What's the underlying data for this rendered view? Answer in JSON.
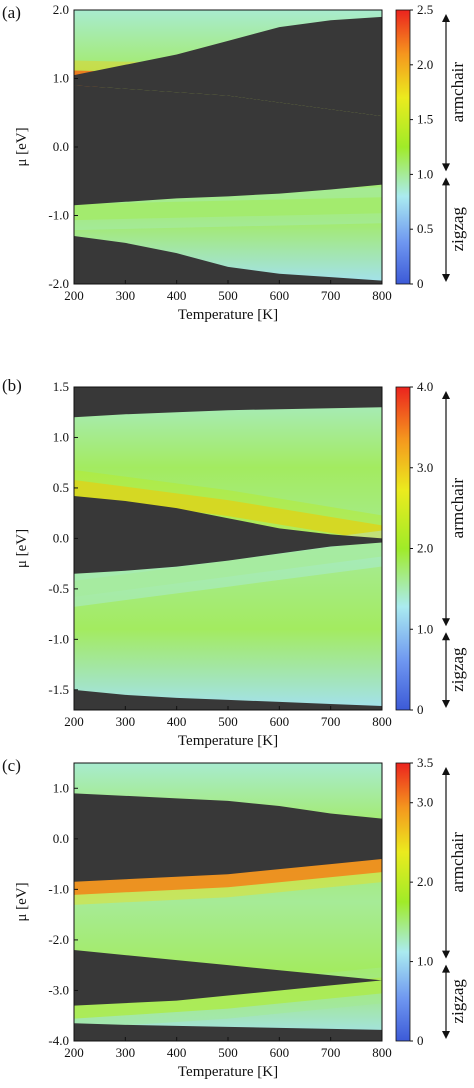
{
  "chart_data": [
    {
      "type": "heatmap",
      "panel_label": "(a)",
      "xlabel": "Temperature [K]",
      "ylabel": "μ [eV]",
      "xlim": [
        200,
        800
      ],
      "ylim": [
        -2.0,
        2.0
      ],
      "xticks": [
        "200",
        "300",
        "400",
        "500",
        "600",
        "700",
        "800"
      ],
      "yticks": [
        "2.0",
        "1.0",
        "0.0",
        "-1.0",
        "-2.0"
      ],
      "ytick_values": [
        2.0,
        1.0,
        0.0,
        -1.0,
        -2.0
      ],
      "colorbar": {
        "range": [
          0,
          2.5
        ],
        "ticks": [
          "2.5",
          "2.0",
          "1.5",
          "1.0",
          "0.5",
          "0"
        ],
        "tick_values": [
          2.5,
          2.0,
          1.5,
          1.0,
          0.5,
          0
        ],
        "split_value": 1.0,
        "upper_label": "armchair",
        "lower_label": "zigzag"
      },
      "gap_regions": [
        {
          "t": [
            200,
            300,
            400,
            500,
            600,
            700,
            800
          ],
          "lo": [
            0.9,
            0.85,
            0.8,
            0.75,
            0.65,
            0.55,
            0.45
          ],
          "hi": [
            1.05,
            1.2,
            1.35,
            1.55,
            1.75,
            1.85,
            1.9
          ]
        },
        {
          "t": [
            200,
            300,
            400,
            500,
            600,
            700,
            800
          ],
          "lo": [
            -0.85,
            -0.8,
            -0.75,
            -0.72,
            -0.68,
            -0.62,
            -0.55
          ],
          "hi": [
            0.9,
            0.85,
            0.8,
            0.75,
            0.65,
            0.55,
            0.45
          ]
        },
        {
          "t": [
            200,
            300,
            400,
            500,
            600,
            700,
            800
          ],
          "lo": [
            -2.0,
            -2.0,
            -2.0,
            -2.0,
            -2.0,
            -2.0,
            -2.0
          ],
          "hi": [
            -1.3,
            -1.4,
            -1.55,
            -1.75,
            -1.85,
            -1.9,
            -1.95
          ]
        }
      ],
      "bands": [
        {
          "t": [
            200,
            500,
            800
          ],
          "mu": [
            1.0,
            0.95,
            0.7
          ],
          "value": [
            2.4,
            2.45,
            2.5
          ]
        },
        {
          "t": [
            200,
            500,
            800
          ],
          "mu": [
            -0.95,
            -0.9,
            -0.85
          ],
          "value": [
            1.4,
            1.2,
            1.1
          ]
        }
      ]
    },
    {
      "type": "heatmap",
      "panel_label": "(b)",
      "xlabel": "Temperature [K]",
      "ylabel": "μ [eV]",
      "xlim": [
        200,
        800
      ],
      "ylim": [
        -1.7,
        1.5
      ],
      "xticks": [
        "200",
        "300",
        "400",
        "500",
        "600",
        "700",
        "800"
      ],
      "yticks": [
        "1.5",
        "1.0",
        "0.5",
        "0.0",
        "-0.5",
        "-1.0",
        "-1.5"
      ],
      "ytick_values": [
        1.5,
        1.0,
        0.5,
        0.0,
        -0.5,
        -1.0,
        -1.5
      ],
      "colorbar": {
        "range": [
          0,
          4.0
        ],
        "ticks": [
          "4.0",
          "3.0",
          "2.0",
          "1.0",
          "0"
        ],
        "tick_values": [
          4.0,
          3.0,
          2.0,
          1.0,
          0
        ],
        "split_value": 1.0,
        "upper_label": "armchair",
        "lower_label": "zigzag"
      },
      "gap_regions": [
        {
          "t": [
            200,
            300,
            400,
            500,
            600,
            700,
            800
          ],
          "lo": [
            1.2,
            1.23,
            1.25,
            1.27,
            1.28,
            1.29,
            1.3
          ],
          "hi": [
            1.5,
            1.5,
            1.5,
            1.5,
            1.5,
            1.5,
            1.5
          ]
        },
        {
          "t": [
            200,
            300,
            400,
            500,
            600,
            700,
            800
          ],
          "lo": [
            -0.35,
            -0.32,
            -0.28,
            -0.22,
            -0.15,
            -0.08,
            -0.04
          ],
          "hi": [
            0.42,
            0.37,
            0.3,
            0.2,
            0.1,
            0.04,
            0.0
          ]
        },
        {
          "t": [
            200,
            300,
            400,
            500,
            600,
            700,
            800
          ],
          "lo": [
            -1.7,
            -1.7,
            -1.7,
            -1.7,
            -1.7,
            -1.7,
            -1.7
          ],
          "hi": [
            -1.5,
            -1.55,
            -1.58,
            -1.6,
            -1.62,
            -1.64,
            -1.66
          ]
        }
      ],
      "bands": [
        {
          "t": [
            200,
            500,
            800
          ],
          "mu": [
            0.5,
            0.3,
            0.05
          ],
          "value": [
            3.4,
            3.0,
            2.6
          ]
        },
        {
          "t": [
            200,
            500,
            800
          ],
          "mu": [
            -0.5,
            -0.3,
            -0.1
          ],
          "value": [
            1.9,
            1.8,
            1.6
          ]
        }
      ]
    },
    {
      "type": "heatmap",
      "panel_label": "(c)",
      "xlabel": "Temperature [K]",
      "ylabel": "μ [eV]",
      "xlim": [
        200,
        800
      ],
      "ylim": [
        -4.0,
        1.5
      ],
      "xticks": [
        "200",
        "300",
        "400",
        "500",
        "600",
        "700",
        "800"
      ],
      "yticks": [
        "1.0",
        "0.0",
        "-1.0",
        "-2.0",
        "-3.0",
        "-4.0"
      ],
      "ytick_values": [
        1.0,
        0.0,
        -1.0,
        -2.0,
        -3.0,
        -4.0
      ],
      "colorbar": {
        "range": [
          0,
          3.5
        ],
        "ticks": [
          "3.5",
          "3.0",
          "2.0",
          "1.0",
          "0"
        ],
        "tick_values": [
          3.5,
          3.0,
          2.0,
          1.0,
          0
        ],
        "split_value": 1.0,
        "upper_label": "armchair",
        "lower_label": "zigzag"
      },
      "gap_regions": [
        {
          "t": [
            200,
            300,
            400,
            500,
            600,
            700,
            800
          ],
          "lo": [
            -0.85,
            -0.8,
            -0.75,
            -0.7,
            -0.6,
            -0.5,
            -0.4
          ],
          "hi": [
            0.9,
            0.85,
            0.8,
            0.75,
            0.65,
            0.5,
            0.4
          ]
        },
        {
          "t": [
            200,
            300,
            400,
            500,
            600,
            700,
            800
          ],
          "lo": [
            -3.3,
            -3.25,
            -3.2,
            -3.1,
            -3.0,
            -2.9,
            -2.8
          ],
          "hi": [
            -2.2,
            -2.3,
            -2.4,
            -2.5,
            -2.6,
            -2.7,
            -2.8
          ]
        },
        {
          "t": [
            200,
            300,
            400,
            500,
            600,
            700,
            800
          ],
          "lo": [
            -4.0,
            -4.0,
            -4.0,
            -4.0,
            -4.0,
            -4.0,
            -4.0
          ],
          "hi": [
            -3.65,
            -3.68,
            -3.7,
            -3.72,
            -3.74,
            -3.76,
            -3.78
          ]
        }
      ],
      "bands": [
        {
          "t": [
            200,
            500,
            800
          ],
          "mu": [
            -0.95,
            -0.8,
            -0.5
          ],
          "value": [
            3.2,
            3.3,
            3.4
          ]
        },
        {
          "t": [
            200,
            500,
            800
          ],
          "mu": [
            -3.4,
            -3.2,
            -2.9
          ],
          "value": [
            1.8,
            1.9,
            2.0
          ]
        }
      ]
    }
  ]
}
